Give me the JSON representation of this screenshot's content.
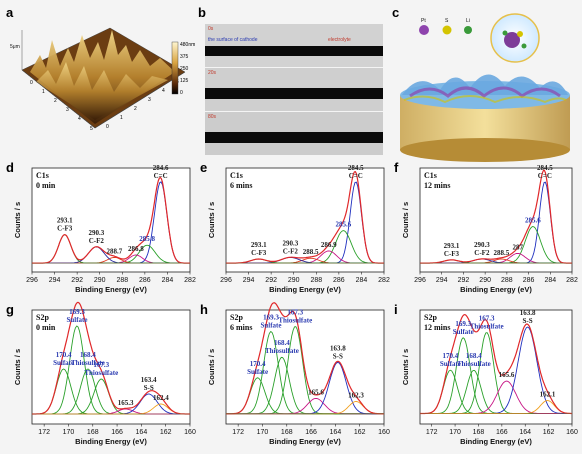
{
  "panels": {
    "a": {
      "label": "a",
      "colorbar": [
        "480nm",
        "375",
        "250",
        "125",
        "0"
      ],
      "x_ticks": [
        "0",
        "1",
        "2",
        "3",
        "4",
        "5"
      ],
      "y_ticks": [
        "0",
        "1",
        "2",
        "3",
        "4",
        "5"
      ],
      "unit": "5μm"
    },
    "b": {
      "label": "b",
      "frames": [
        "0s",
        "20s",
        "80s"
      ],
      "left_caption": "the surface of cathode",
      "right_caption": "electrolyte"
    },
    "c": {
      "label": "c",
      "legend": [
        "Pt",
        "S",
        "Li"
      ]
    }
  },
  "chart_data": [
    {
      "id": "d",
      "type": "line",
      "core": "C1s",
      "time": "0 min",
      "x_range": [
        296,
        282
      ],
      "x_ticks": [
        "296",
        "294",
        "292",
        "290",
        "288",
        "286",
        "284",
        "282"
      ],
      "xlabel": "Binding Energy (eV)",
      "ylabel": "Counts / s",
      "peaks": [
        {
          "pos": 284.6,
          "label": "284.6 C=C",
          "height": 1.0,
          "width": 0.55,
          "color": "#1f2fbf"
        },
        {
          "pos": 285.8,
          "label": "285.8",
          "height": 0.22,
          "width": 0.7,
          "color": "#2aa02a"
        },
        {
          "pos": 286.8,
          "label": "286.8",
          "height": 0.1,
          "width": 0.6,
          "color": "#c71585"
        },
        {
          "pos": 288.7,
          "label": "288.7",
          "height": 0.07,
          "width": 0.6,
          "color": "#e03a1e"
        },
        {
          "pos": 290.3,
          "label": "290.3 C-F2",
          "height": 0.2,
          "width": 0.7,
          "color": "#2a2a9e"
        },
        {
          "pos": 293.1,
          "label": "293.1 C-F3",
          "height": 0.35,
          "width": 0.55,
          "color": "#2e8b2e"
        }
      ]
    },
    {
      "id": "e",
      "type": "line",
      "core": "C1s",
      "time": "6 mins",
      "x_range": [
        296,
        282
      ],
      "x_ticks": [
        "296",
        "294",
        "292",
        "290",
        "288",
        "286",
        "284",
        "282"
      ],
      "xlabel": "Binding Energy (eV)",
      "ylabel": "Counts / s",
      "peaks": [
        {
          "pos": 284.5,
          "label": "284.5 C=C",
          "height": 1.0,
          "width": 0.5,
          "color": "#1f2fbf"
        },
        {
          "pos": 285.6,
          "label": "285.6",
          "height": 0.4,
          "width": 0.7,
          "color": "#2aa02a"
        },
        {
          "pos": 286.9,
          "label": "286.9",
          "height": 0.15,
          "width": 0.7,
          "color": "#c71585"
        },
        {
          "pos": 288.5,
          "label": "288.5",
          "height": 0.06,
          "width": 0.7,
          "color": "#e03a1e"
        },
        {
          "pos": 290.3,
          "label": "290.3 C-F2",
          "height": 0.07,
          "width": 0.8,
          "color": "#2a2a9e"
        },
        {
          "pos": 293.1,
          "label": "293.1 C-F3",
          "height": 0.05,
          "width": 0.7,
          "color": "#2e8b2e"
        }
      ]
    },
    {
      "id": "f",
      "type": "line",
      "core": "C1s",
      "time": "12 mins",
      "x_range": [
        296,
        282
      ],
      "x_ticks": [
        "296",
        "294",
        "292",
        "290",
        "288",
        "286",
        "284",
        "282"
      ],
      "xlabel": "Binding Energy (eV)",
      "ylabel": "Counts / s",
      "peaks": [
        {
          "pos": 284.5,
          "label": "284.5 C=C",
          "height": 1.0,
          "width": 0.5,
          "color": "#1f2fbf"
        },
        {
          "pos": 285.6,
          "label": "285.6",
          "height": 0.45,
          "width": 0.7,
          "color": "#2aa02a"
        },
        {
          "pos": 287,
          "label": "287",
          "height": 0.12,
          "width": 0.7,
          "color": "#c71585"
        },
        {
          "pos": 288.5,
          "label": "288.5",
          "height": 0.05,
          "width": 0.7,
          "color": "#e03a1e"
        },
        {
          "pos": 290.3,
          "label": "290.3 C-F2",
          "height": 0.05,
          "width": 0.8,
          "color": "#2a2a9e"
        },
        {
          "pos": 293.1,
          "label": "293.1 C-F3",
          "height": 0.04,
          "width": 0.7,
          "color": "#2e8b2e"
        }
      ]
    },
    {
      "id": "g",
      "type": "line",
      "core": "S2p",
      "time": "0 min",
      "x_range": [
        173,
        160
      ],
      "x_ticks": [
        "172",
        "170",
        "168",
        "166",
        "164",
        "162",
        "160"
      ],
      "xlabel": "Binding Energy (eV)",
      "ylabel": "Counts / s",
      "peaks": [
        {
          "pos": 170.4,
          "label": "170.4 Sulfate",
          "height": 0.45,
          "width": 0.6,
          "color": "#2aa02a"
        },
        {
          "pos": 169.3,
          "label": "169.3 Sulfate",
          "height": 0.88,
          "width": 0.6,
          "color": "#2aa02a"
        },
        {
          "pos": 168.4,
          "label": "168.4 Thiosulfate",
          "height": 0.45,
          "width": 0.6,
          "color": "#2aa02a"
        },
        {
          "pos": 167.3,
          "label": "167.3 Thiosulfate",
          "height": 0.35,
          "width": 0.6,
          "color": "#2aa02a"
        },
        {
          "pos": 165.3,
          "label": "165.3",
          "height": 0.05,
          "width": 0.6,
          "color": "#c71585"
        },
        {
          "pos": 163.4,
          "label": "163.4 S-S",
          "height": 0.2,
          "width": 0.7,
          "color": "#1f2fbf"
        },
        {
          "pos": 162.4,
          "label": "162.4",
          "height": 0.1,
          "width": 0.6,
          "color": "#f0a020"
        }
      ]
    },
    {
      "id": "h",
      "type": "line",
      "core": "S2p",
      "time": "6 mins",
      "x_range": [
        173,
        160
      ],
      "x_ticks": [
        "172",
        "170",
        "168",
        "166",
        "164",
        "162",
        "160"
      ],
      "xlabel": "Binding Energy (eV)",
      "ylabel": "Counts / s",
      "peaks": [
        {
          "pos": 170.4,
          "label": "170.4 Sulfate",
          "height": 0.35,
          "width": 0.6,
          "color": "#2aa02a"
        },
        {
          "pos": 169.3,
          "label": "169.3 Sulfate",
          "height": 0.8,
          "width": 0.6,
          "color": "#2aa02a"
        },
        {
          "pos": 168.4,
          "label": "168.4 Thiosulfate",
          "height": 0.55,
          "width": 0.6,
          "color": "#2aa02a"
        },
        {
          "pos": 167.3,
          "label": "167.3 Thiosulfate",
          "height": 0.85,
          "width": 0.6,
          "color": "#2aa02a"
        },
        {
          "pos": 165.6,
          "label": "165.6",
          "height": 0.15,
          "width": 0.7,
          "color": "#c71585"
        },
        {
          "pos": 163.8,
          "label": "163.8 S-S",
          "height": 0.5,
          "width": 0.7,
          "color": "#1f2fbf"
        },
        {
          "pos": 162.3,
          "label": "162.3",
          "height": 0.12,
          "width": 0.6,
          "color": "#f0a020"
        }
      ]
    },
    {
      "id": "i",
      "type": "line",
      "core": "S2p",
      "time": "12 mins",
      "x_range": [
        173,
        160
      ],
      "x_ticks": [
        "172",
        "170",
        "168",
        "166",
        "164",
        "162",
        "160"
      ],
      "xlabel": "Binding Energy (eV)",
      "ylabel": "Counts / s",
      "peaks": [
        {
          "pos": 170.4,
          "label": "170.4 Sulfate",
          "height": 0.4,
          "width": 0.6,
          "color": "#2aa02a"
        },
        {
          "pos": 169.3,
          "label": "169.3 Sulfate",
          "height": 0.7,
          "width": 0.6,
          "color": "#2aa02a"
        },
        {
          "pos": 168.4,
          "label": "168.4 Thiosulfate",
          "height": 0.4,
          "width": 0.6,
          "color": "#2aa02a"
        },
        {
          "pos": 167.3,
          "label": "167.3 Thiosulfate",
          "height": 0.75,
          "width": 0.6,
          "color": "#2aa02a"
        },
        {
          "pos": 165.6,
          "label": "165.6",
          "height": 0.3,
          "width": 0.8,
          "color": "#c71585"
        },
        {
          "pos": 163.8,
          "label": "163.8 S-S",
          "height": 0.8,
          "width": 0.8,
          "color": "#1f2fbf"
        },
        {
          "pos": 162.1,
          "label": "162.1",
          "height": 0.12,
          "width": 0.6,
          "color": "#f0a020"
        }
      ]
    }
  ]
}
